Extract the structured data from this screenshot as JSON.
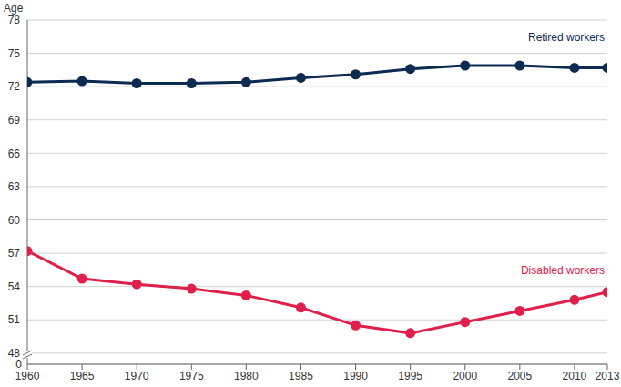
{
  "chart_data": {
    "type": "line",
    "ylabel": "Age",
    "y_break_label": "0",
    "x": [
      1960,
      1965,
      1970,
      1975,
      1980,
      1985,
      1990,
      1995,
      2000,
      2005,
      2010,
      2013
    ],
    "series": [
      {
        "name": "Retired workers",
        "color": "#0d2b52",
        "marker": "circle",
        "values": [
          72.4,
          72.5,
          72.3,
          72.3,
          72.4,
          72.8,
          73.1,
          73.6,
          73.9,
          73.9,
          73.7,
          73.7
        ]
      },
      {
        "name": "Disabled workers",
        "color": "#e0204a",
        "marker": "circle",
        "values": [
          57.2,
          54.7,
          54.2,
          53.8,
          53.2,
          52.1,
          50.5,
          49.8,
          50.8,
          51.8,
          52.8,
          53.5
        ]
      }
    ],
    "xlim": [
      1960,
      2013
    ],
    "xticks": [
      1960,
      1965,
      1970,
      1975,
      1980,
      1985,
      1990,
      1995,
      2000,
      2005,
      2010,
      2013
    ],
    "ylim": [
      47,
      78
    ],
    "yticks": [
      48,
      51,
      54,
      57,
      60,
      63,
      66,
      69,
      72,
      75,
      78
    ],
    "grid": true
  }
}
